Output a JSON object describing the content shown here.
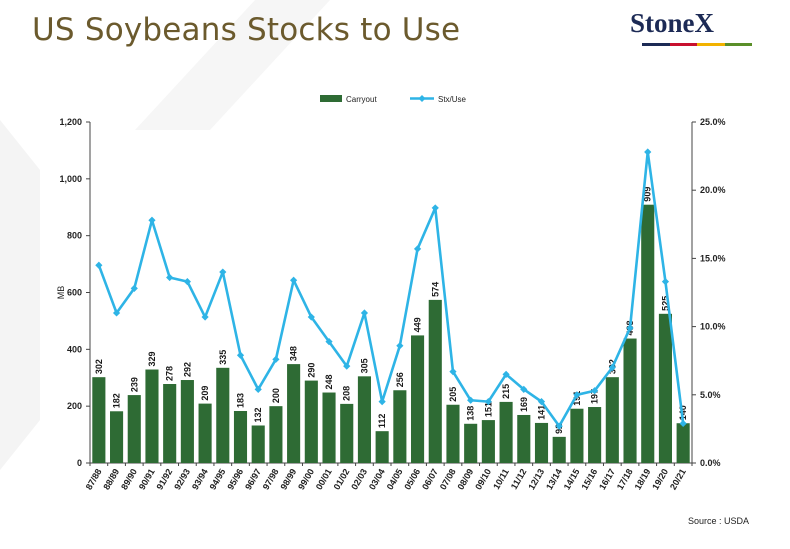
{
  "slide": {
    "title": "US Soybeans Stocks to Use"
  },
  "logo": {
    "text": "StoneX",
    "bar_colors": [
      "#1c2a55",
      "#c8102e",
      "#f2b200",
      "#5a8f29"
    ]
  },
  "source": "Source : USDA",
  "chart_data": {
    "type": "bar",
    "categories": [
      "87/88",
      "88/89",
      "89/90",
      "90/91",
      "91/92",
      "92/93",
      "93/94",
      "94/95",
      "95/96",
      "96/97",
      "97/98",
      "98/99",
      "99/00",
      "00/01",
      "01/02",
      "02/03",
      "03/04",
      "04/05",
      "05/06",
      "06/07",
      "07/08",
      "08/09",
      "09/10",
      "10/11",
      "11/12",
      "12/13",
      "13/14",
      "14/15",
      "15/16",
      "16/17",
      "17/18",
      "18/19",
      "19/20",
      "20/21"
    ],
    "series": [
      {
        "name": "Carryout",
        "kind": "bar",
        "axis": "left",
        "color": "#2e6b34",
        "values": [
          302,
          182,
          239,
          329,
          278,
          292,
          209,
          335,
          183,
          132,
          200,
          348,
          290,
          248,
          208,
          305,
          112,
          256,
          449,
          574,
          205,
          138,
          151,
          215,
          169,
          141,
          92,
          191,
          197,
          302,
          438,
          909,
          525,
          140
        ]
      },
      {
        "name": "Stx/Use",
        "kind": "line",
        "axis": "right",
        "color": "#2eb4e6",
        "values": [
          14.5,
          11.0,
          12.8,
          17.8,
          13.6,
          13.3,
          10.7,
          14.0,
          7.9,
          5.4,
          7.6,
          13.4,
          10.7,
          8.9,
          7.1,
          11.0,
          4.5,
          8.6,
          15.7,
          18.7,
          6.7,
          4.6,
          4.5,
          6.5,
          5.4,
          4.5,
          2.7,
          5.0,
          5.3,
          7.0,
          9.9,
          22.8,
          13.3,
          2.9
        ]
      }
    ],
    "y_left": {
      "label": "MB",
      "min": 0,
      "max": 1200,
      "ticks": [
        0,
        200,
        400,
        600,
        800,
        1000,
        1200
      ],
      "tick_labels": [
        "0",
        "200",
        "400",
        "600",
        "800",
        "1,000",
        "1,200"
      ]
    },
    "y_right": {
      "min": 0,
      "max": 25,
      "ticks": [
        0,
        5,
        10,
        15,
        20,
        25
      ],
      "tick_labels": [
        "0.0%",
        "5.0%",
        "10.0%",
        "15.0%",
        "20.0%",
        "25.0%"
      ]
    },
    "legend_position": "top-center",
    "grid": false
  }
}
